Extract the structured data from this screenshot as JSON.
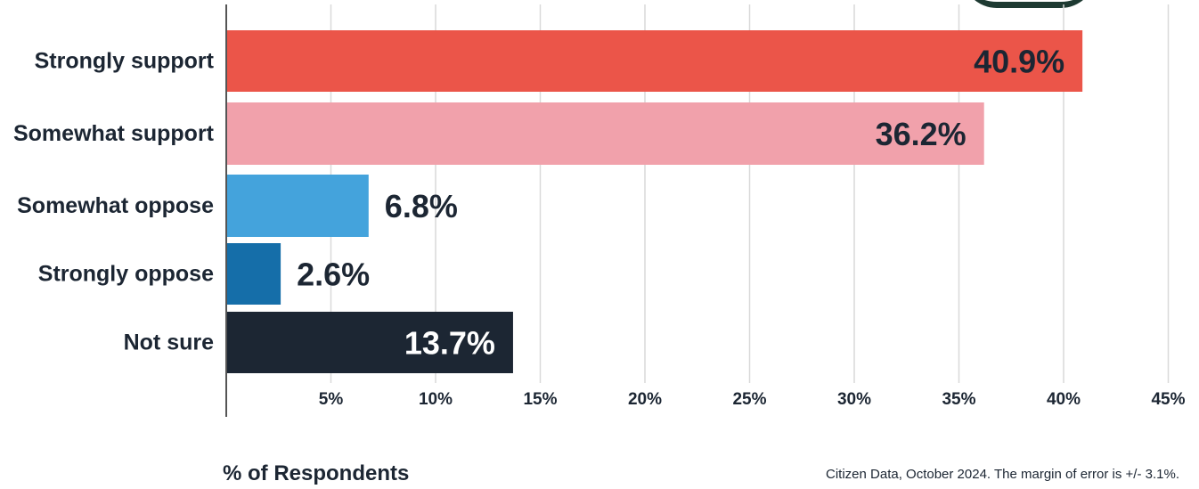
{
  "chart_data": {
    "type": "bar",
    "orientation": "horizontal",
    "categories": [
      "Strongly support",
      "Somewhat support",
      "Somewhat oppose",
      "Strongly oppose",
      "Not sure"
    ],
    "values": [
      40.9,
      36.2,
      6.8,
      2.6,
      13.7
    ],
    "value_labels": [
      "40.9%",
      "36.2%",
      "6.8%",
      "2.6%",
      "13.7%"
    ],
    "colors": [
      "#eb5549",
      "#f1a1ab",
      "#44a3dc",
      "#156ea9",
      "#1c2633"
    ],
    "xlabel": "% of Respondents",
    "xlim": [
      0,
      45
    ],
    "xticks": [
      5,
      10,
      15,
      20,
      25,
      30,
      35,
      40,
      45
    ],
    "xtick_labels": [
      "5%",
      "10%",
      "15%",
      "20%",
      "25%",
      "30%",
      "35%",
      "40%",
      "45%"
    ],
    "grid": true
  },
  "source_note": "Citizen Data, October 2024. The margin of error is +/- 3.1%."
}
